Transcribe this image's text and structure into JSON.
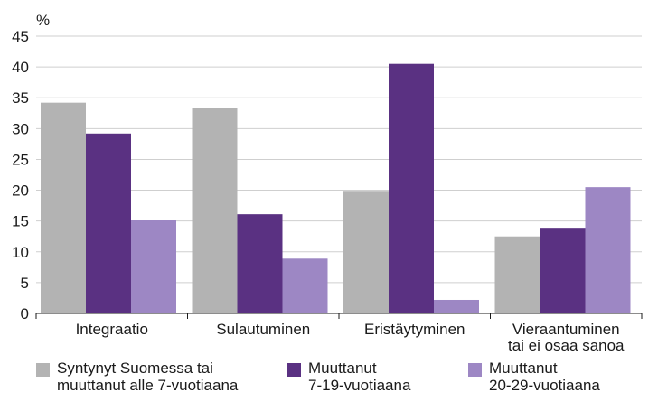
{
  "chart_data": {
    "type": "bar",
    "unit_label": "%",
    "ylim": [
      0,
      45
    ],
    "yticks": [
      0,
      5,
      10,
      15,
      20,
      25,
      30,
      35,
      40,
      45
    ],
    "grid": true,
    "legend_position": "bottom",
    "categories": [
      "Integraatio",
      "Sulautuminen",
      "Eristäytyminen",
      "Vieraantuminen\ntai ei osaa sanoa"
    ],
    "series": [
      {
        "name": "Syntynyt Suomessa tai\nmuuttanut alle 7-vuotiaana",
        "color": "#b3b3b3",
        "values": [
          34.2,
          33.3,
          19.9,
          12.5
        ]
      },
      {
        "name": "Muuttanut\n7-19-vuotiaana",
        "color": "#5a3182",
        "values": [
          29.2,
          16.1,
          40.5,
          13.9
        ]
      },
      {
        "name": "Muuttanut\n20-29-vuotiaana",
        "color": "#9d87c4",
        "values": [
          15.1,
          8.9,
          2.2,
          20.5
        ]
      }
    ]
  }
}
